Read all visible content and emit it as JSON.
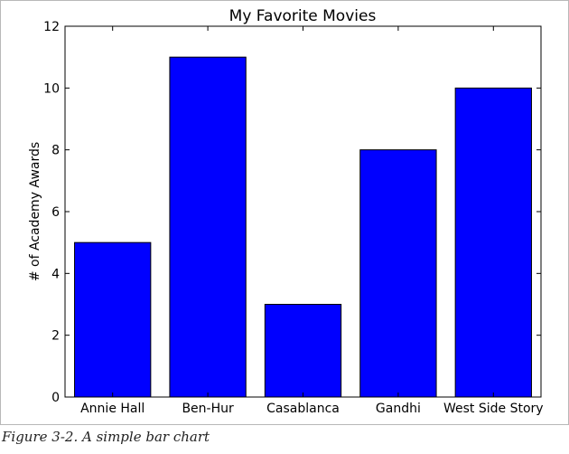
{
  "chart_data": {
    "type": "bar",
    "title": "My Favorite Movies",
    "xlabel": "",
    "ylabel": "# of Academy Awards",
    "categories": [
      "Annie Hall",
      "Ben-Hur",
      "Casablanca",
      "Gandhi",
      "West Side Story"
    ],
    "values": [
      5,
      11,
      3,
      8,
      10
    ],
    "ylim": [
      0,
      12
    ],
    "yticks": [
      0,
      2,
      4,
      6,
      8,
      10,
      12
    ],
    "bar_color": "#0000ff",
    "grid": false,
    "legend": "none"
  },
  "caption": "Figure 3-2. A simple bar chart"
}
